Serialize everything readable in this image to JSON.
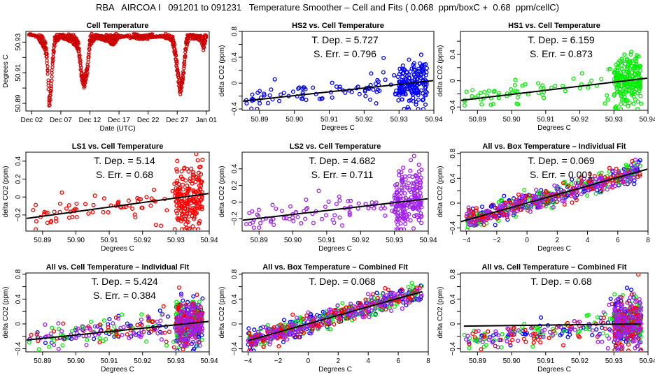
{
  "title": "RBA   AIRCOA I   091201 to 091231   Temperature Smoother – Cell and Fits ( 0.068  ppm/boxC +  0.68  ppm/cellC)",
  "colors": {
    "HS2": "#0000ff",
    "HS1": "#00ee00",
    "LS1": "#ff0000",
    "LS2": "#a020f0",
    "fit": "#000000",
    "cell": "#cc0000"
  },
  "chart_data": [
    {
      "type": "scatter",
      "title": "Cell Temperature",
      "xlabel": "Date (UTC)",
      "ylabel": "Degrees C",
      "xticks": [
        "Dec 02",
        "Dec 07",
        "Dec 12",
        "Dec 17",
        "Dec 22",
        "Dec 27",
        "Jan 01"
      ],
      "xlim": [
        0,
        31.5
      ],
      "ylim": [
        50.885,
        50.937
      ],
      "yticks": [
        50.89,
        50.91,
        50.93
      ],
      "minor_yticks": [
        50.9,
        50.92
      ],
      "series": [
        {
          "name": "Cell",
          "color": "#cc0000",
          "profile": [
            [
              0.5,
              50.935
            ],
            [
              2,
              50.934
            ],
            [
              2.5,
              50.93
            ],
            [
              3.3,
              50.925
            ],
            [
              3.6,
              50.918
            ],
            [
              3.8,
              50.905
            ],
            [
              4.0,
              50.887
            ],
            [
              4.3,
              50.895
            ],
            [
              4.6,
              50.915
            ],
            [
              5,
              50.93
            ],
            [
              6,
              50.933
            ],
            [
              7,
              50.932
            ],
            [
              8,
              50.93
            ],
            [
              9,
              50.925
            ],
            [
              9.6,
              50.905
            ],
            [
              10,
              50.9
            ],
            [
              10.6,
              50.91
            ],
            [
              11,
              50.928
            ],
            [
              12,
              50.933
            ],
            [
              14,
              50.931
            ],
            [
              15,
              50.928
            ],
            [
              16,
              50.934
            ],
            [
              19,
              50.933
            ],
            [
              20,
              50.932
            ],
            [
              23,
              50.934
            ],
            [
              25,
              50.932
            ],
            [
              25.6,
              50.922
            ],
            [
              26,
              50.91
            ],
            [
              26.5,
              50.895
            ],
            [
              27,
              50.905
            ],
            [
              27.5,
              50.925
            ],
            [
              28,
              50.933
            ],
            [
              30,
              50.932
            ],
            [
              30.5,
              50.925
            ],
            [
              31,
              50.933
            ]
          ]
        }
      ]
    },
    {
      "type": "scatter",
      "title": "HS2 vs. Cell Temperature",
      "xlabel": "Degrees C",
      "ylabel": "delta CO2 (ppm)",
      "annotations": [
        "T. Dep. =  5.727",
        "S. Err. =  0.796"
      ],
      "xlim": [
        50.885,
        50.94
      ],
      "ylim": [
        -0.42,
        0.8
      ],
      "xticks": [
        50.89,
        50.9,
        50.91,
        50.92,
        50.93,
        50.94
      ],
      "yticks": [
        -0.4,
        0.0,
        0.4,
        0.8
      ],
      "minor_yticks": [
        -0.2,
        0.2,
        0.6
      ],
      "series": [
        {
          "name": "HS2",
          "color": "#0000ff"
        }
      ],
      "fit": {
        "x": [
          50.885,
          50.94
        ],
        "y": [
          -0.28,
          0.04
        ]
      }
    },
    {
      "type": "scatter",
      "title": "HS1 vs. Cell Temperature",
      "xlabel": "Degrees C",
      "ylabel": "delta CO2 (ppm)",
      "annotations": [
        "T. Dep. =  6.159",
        "S. Err. =  0.873"
      ],
      "xlim": [
        50.885,
        50.94
      ],
      "ylim": [
        -0.45,
        0.75
      ],
      "xticks": [
        50.89,
        50.9,
        50.91,
        50.92,
        50.93,
        50.94
      ],
      "yticks": [
        -0.4,
        0.0,
        0.4
      ],
      "minor_yticks": [
        -0.2,
        0.2,
        0.6
      ],
      "series": [
        {
          "name": "HS1",
          "color": "#00ee00"
        }
      ],
      "fit": {
        "x": [
          50.885,
          50.94
        ],
        "y": [
          -0.3,
          0.04
        ]
      }
    },
    {
      "type": "scatter",
      "title": "LS1 vs. Cell Temperature",
      "xlabel": "Degrees C",
      "ylabel": "delta CO2 (ppm)",
      "annotations": [
        "T. Dep. =  5.14",
        "S. Err. =  0.68"
      ],
      "xlim": [
        50.885,
        50.94
      ],
      "ylim": [
        -0.38,
        0.5
      ],
      "xticks": [
        50.89,
        50.9,
        50.91,
        50.92,
        50.93,
        50.94
      ],
      "yticks": [
        -0.2,
        0.0,
        0.2,
        0.4
      ],
      "minor_yticks": [],
      "series": [
        {
          "name": "LS1",
          "color": "#ff0000"
        }
      ],
      "fit": {
        "x": [
          50.885,
          50.94
        ],
        "y": [
          -0.24,
          0.04
        ]
      }
    },
    {
      "type": "scatter",
      "title": "LS2 vs. Cell Temperature",
      "xlabel": "Degrees C",
      "ylabel": "delta CO2 (ppm)",
      "annotations": [
        "T. Dep. =  4.682",
        "S. Err. =  0.711"
      ],
      "xlim": [
        50.885,
        50.94
      ],
      "ylim": [
        -0.35,
        0.6
      ],
      "xticks": [
        50.89,
        50.9,
        50.91,
        50.92,
        50.93,
        50.94
      ],
      "yticks": [
        -0.2,
        0.0,
        0.2,
        0.4
      ],
      "minor_yticks": [],
      "series": [
        {
          "name": "LS2",
          "color": "#a020f0"
        }
      ],
      "fit": {
        "x": [
          50.885,
          50.94
        ],
        "y": [
          -0.22,
          0.04
        ]
      }
    },
    {
      "type": "scatter",
      "title": "All vs. Box Temperature – Individual Fit",
      "xlabel": "Degrees C",
      "ylabel": "delta CO2 (ppm)",
      "annotations": [
        "T. Dep. =  0.069",
        "S. Err. =  0.001"
      ],
      "xlim": [
        -4.4,
        8
      ],
      "ylim": [
        -0.45,
        0.82
      ],
      "xticks": [
        -4,
        -2,
        0,
        2,
        4,
        6,
        8
      ],
      "yticks": [
        -0.4,
        0.0,
        0.4,
        0.8
      ],
      "minor_yticks": [
        -0.2,
        0.2,
        0.6
      ],
      "series": [
        {
          "name": "HS2",
          "color": "#0000ff"
        },
        {
          "name": "HS1",
          "color": "#00ee00"
        },
        {
          "name": "LS1",
          "color": "#ff0000"
        },
        {
          "name": "LS2",
          "color": "#a020f0"
        }
      ],
      "fit": {
        "x": [
          -4.4,
          8
        ],
        "y": [
          -0.3,
          0.55
        ]
      }
    },
    {
      "type": "scatter",
      "title": "All vs. Cell Temperature – Individual Fit",
      "xlabel": "Degrees C",
      "ylabel": "delta CO2 (ppm)",
      "annotations": [
        "T. Dep. =  5.424",
        "S. Err. =  0.384"
      ],
      "xlim": [
        50.885,
        50.94
      ],
      "ylim": [
        -0.45,
        0.82
      ],
      "xticks": [
        50.89,
        50.9,
        50.91,
        50.92,
        50.93,
        50.94
      ],
      "yticks": [
        -0.4,
        0.0,
        0.4,
        0.8
      ],
      "minor_yticks": [
        -0.2,
        0.2,
        0.6
      ],
      "series": [
        {
          "name": "HS2",
          "color": "#0000ff"
        },
        {
          "name": "HS1",
          "color": "#00ee00"
        },
        {
          "name": "LS1",
          "color": "#ff0000"
        },
        {
          "name": "LS2",
          "color": "#a020f0"
        }
      ],
      "fit": {
        "x": [
          50.885,
          50.94
        ],
        "y": [
          -0.26,
          0.04
        ]
      }
    },
    {
      "type": "scatter",
      "title": "All vs. Box Temperature – Combined Fit",
      "xlabel": "Degrees C",
      "ylabel": "delta CO2 (ppm)",
      "annotations": [
        "T. Dep. =  0.068"
      ],
      "xlim": [
        -4.4,
        8
      ],
      "ylim": [
        -0.45,
        0.82
      ],
      "xticks": [
        -4,
        -2,
        0,
        2,
        4,
        6,
        8
      ],
      "yticks": [
        -0.4,
        0.0,
        0.4,
        0.8
      ],
      "minor_yticks": [
        -0.2,
        0.2,
        0.6
      ],
      "series": [
        {
          "name": "HS2",
          "color": "#0000ff"
        },
        {
          "name": "HS1",
          "color": "#00ee00"
        },
        {
          "name": "LS1",
          "color": "#ff0000"
        },
        {
          "name": "LS2",
          "color": "#a020f0"
        }
      ],
      "fit": {
        "x": [
          -4,
          7.6
        ],
        "y": [
          -0.27,
          0.52
        ]
      }
    },
    {
      "type": "scatter",
      "title": "All vs. Cell Temperature – Combined Fit",
      "xlabel": "Degrees C",
      "ylabel": "delta CO2 (ppm)",
      "annotations": [
        "T. Dep. =  0.68"
      ],
      "xlim": [
        50.885,
        50.94
      ],
      "ylim": [
        -0.45,
        0.82
      ],
      "xticks": [
        50.89,
        50.9,
        50.91,
        50.92,
        50.93,
        50.94
      ],
      "yticks": [
        -0.4,
        0.0,
        0.4,
        0.8
      ],
      "minor_yticks": [
        -0.2,
        0.2,
        0.6
      ],
      "series": [
        {
          "name": "HS2",
          "color": "#0000ff"
        },
        {
          "name": "HS1",
          "color": "#00ee00"
        },
        {
          "name": "LS1",
          "color": "#ff0000"
        },
        {
          "name": "LS2",
          "color": "#a020f0"
        }
      ],
      "fit": {
        "x": [
          50.886,
          50.938
        ],
        "y": [
          -0.035,
          0.0
        ]
      }
    }
  ]
}
